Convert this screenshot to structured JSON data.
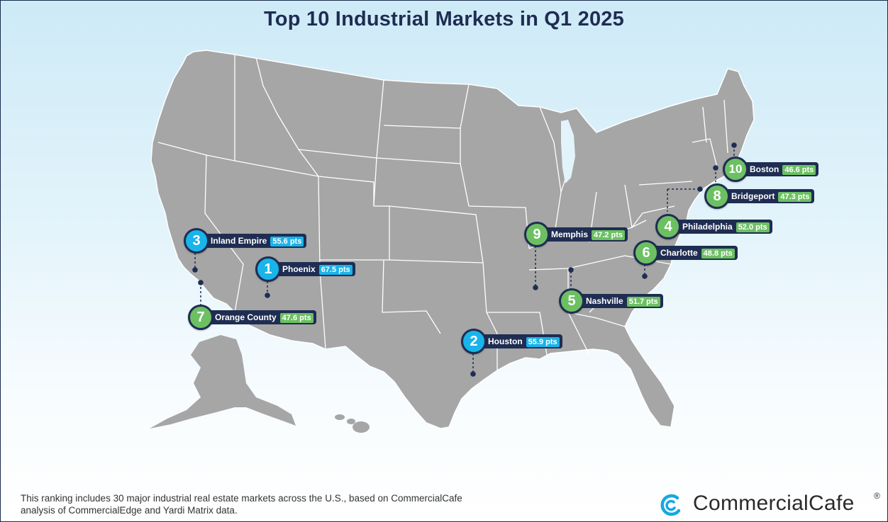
{
  "title": "Top 10 Industrial Markets in Q1 2025",
  "footnote": "This ranking includes 30 major industrial real estate markets across the U.S., based on CommercialCafe analysis of CommercialEdge and Yardi Matrix data.",
  "logo": {
    "name": "CommercialCafe",
    "registered": "®",
    "icon": "commercialcafe-logo-icon"
  },
  "colors": {
    "title": "#1f2d52",
    "land": "#a6a6a6",
    "state_border": "#ffffff",
    "pill": "#1f2d52",
    "badge_blue": "#19b4ea",
    "badge_green": "#6cc062",
    "logo_blue": "#16a8e0"
  },
  "markets": [
    {
      "rank": "1",
      "name": "Phoenix",
      "score": "67.5 pts",
      "color": "blue"
    },
    {
      "rank": "2",
      "name": "Houston",
      "score": "55.9 pts",
      "color": "blue"
    },
    {
      "rank": "3",
      "name": "Inland Empire",
      "score": "55.6 pts",
      "color": "blue"
    },
    {
      "rank": "4",
      "name": "Philadelphia",
      "score": "52.0 pts",
      "color": "green"
    },
    {
      "rank": "5",
      "name": "Nashville",
      "score": "51.7 pts",
      "color": "green"
    },
    {
      "rank": "6",
      "name": "Charlotte",
      "score": "48.8 pts",
      "color": "green"
    },
    {
      "rank": "7",
      "name": "Orange County",
      "score": "47.6 pts",
      "color": "green"
    },
    {
      "rank": "8",
      "name": "Bridgeport",
      "score": "47.3 pts",
      "color": "green"
    },
    {
      "rank": "9",
      "name": "Memphis",
      "score": "47.2 pts",
      "color": "green"
    },
    {
      "rank": "10",
      "name": "Boston",
      "score": "46.6 pts",
      "color": "green"
    }
  ]
}
